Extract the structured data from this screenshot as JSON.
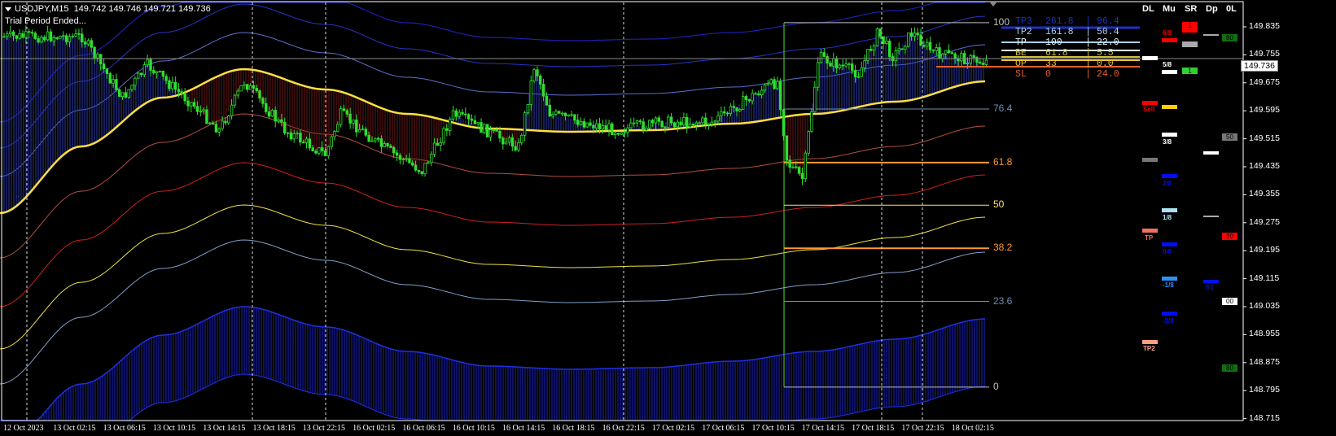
{
  "header": {
    "symbol": "USDJPY,M15",
    "ohlc": "149.742 149.746 149.721 149.736",
    "notice": "Trial Period Ended..."
  },
  "colors": {
    "background": "#000000",
    "candle": "#2fe02f",
    "ma": "#ffe040",
    "bull_fill": "#1a2a9a",
    "bear_fill": "#7a1010"
  },
  "chart_data": {
    "type": "candlestick",
    "x_ticks": [
      "12 Oct 2023",
      "13 Oct 02:15",
      "13 Oct 06:15",
      "13 Oct 10:15",
      "13 Oct 14:15",
      "13 Oct 18:15",
      "13 Oct 22:15",
      "16 Oct 02:15",
      "16 Oct 06:15",
      "16 Oct 10:15",
      "16 Oct 14:15",
      "16 Oct 18:15",
      "16 Oct 22:15",
      "17 Oct 02:15",
      "17 Oct 06:15",
      "17 Oct 10:15",
      "17 Oct 14:15",
      "17 Oct 18:15",
      "17 Oct 22:15",
      "18 Oct 02:15"
    ],
    "y_ticks": [
      "149.835",
      "149.755",
      "149.675",
      "149.595",
      "149.515",
      "149.435",
      "149.355",
      "149.275",
      "149.195",
      "149.115",
      "149.035",
      "148.955",
      "148.875",
      "148.795",
      "148.715"
    ],
    "ylim": [
      148.715,
      149.86
    ],
    "current_price": "149.736",
    "approx_close_path": [
      [
        "12 Oct 22:15",
        149.807
      ],
      [
        "13 Oct 04:30",
        149.807
      ],
      [
        "13 Oct 07:45",
        149.633
      ],
      [
        "13 Oct 09:45",
        149.726
      ],
      [
        "13 Oct 13:30",
        149.609
      ],
      [
        "13 Oct 15:30",
        149.54
      ],
      [
        "13 Oct 17:30",
        149.679
      ],
      [
        "13 Oct 20:45",
        149.54
      ],
      [
        "16 Oct 00:00",
        149.47
      ],
      [
        "16 Oct 01:15",
        149.586
      ],
      [
        "16 Oct 04:30",
        149.493
      ],
      [
        "16 Oct 07:45",
        149.423
      ],
      [
        "16 Oct 10:15",
        149.586
      ],
      [
        "16 Oct 12:45",
        149.54
      ],
      [
        "16 Oct 15:30",
        149.493
      ],
      [
        "16 Oct 16:45",
        149.726
      ],
      [
        "16 Oct 18:00",
        149.586
      ],
      [
        "16 Oct 23:15",
        149.54
      ],
      [
        "17 Oct 03:15",
        149.563
      ],
      [
        "17 Oct 07:00",
        149.563
      ],
      [
        "17 Oct 11:00",
        149.656
      ],
      [
        "17 Oct 12:15",
        149.679
      ],
      [
        "17 Oct 13:00",
        149.447
      ],
      [
        "17 Oct 14:15",
        149.4
      ],
      [
        "17 Oct 15:00",
        149.609
      ],
      [
        "17 Oct 15:30",
        149.749
      ],
      [
        "17 Oct 18:45",
        149.702
      ],
      [
        "17 Oct 20:15",
        149.819
      ],
      [
        "17 Oct 21:30",
        149.749
      ],
      [
        "17 Oct 23:00",
        149.819
      ],
      [
        "18 Oct 00:45",
        149.761
      ],
      [
        "18 Oct 04:30",
        149.736
      ]
    ],
    "fib_levels": [
      {
        "label": "100",
        "price": 149.847,
        "color": "#c0c0c0"
      },
      {
        "label": "76.4",
        "price": 149.6,
        "color": "#6f8fb0"
      },
      {
        "label": "61.8",
        "price": 149.447,
        "color": "#ff9a30"
      },
      {
        "label": "50",
        "price": 149.325,
        "color": "#ffe070"
      },
      {
        "label": "38.2",
        "price": 149.202,
        "color": "#ff9a30"
      },
      {
        "label": "23.6",
        "price": 149.05,
        "color": "#6f8fb0"
      },
      {
        "label": "0",
        "price": 148.805,
        "color": "#c0c0c0"
      }
    ]
  },
  "trade_table": [
    {
      "name": "TP3",
      "level": "261.8",
      "value": "96.4",
      "color": "#2030c0"
    },
    {
      "name": "TP2",
      "level": "161.8",
      "value": "50.4",
      "color": "#a8d0f0"
    },
    {
      "name": "TP",
      "level": "100",
      "value": "22.0",
      "color": "#e0f0f0"
    },
    {
      "name": "BE",
      "level": "61.8",
      "value": "5.5",
      "color": "#d0c040"
    },
    {
      "name": "OP",
      "level": "33",
      "value": "0.0",
      "color": "#f0c030"
    },
    {
      "name": "SL",
      "level": "0",
      "value": "24.0",
      "color": "#e06030"
    }
  ],
  "panel": {
    "headers": [
      "DL",
      "Mu",
      "SR",
      "Dp",
      "0L"
    ],
    "dl": {
      "sell": "Sell",
      "tp": "TP",
      "tp2": "TP2"
    },
    "mu": [
      "6/8",
      "5/8",
      "3/8",
      "2/8",
      "1/8",
      "0/8",
      "-1/8",
      "-2/8"
    ],
    "sr": [
      "1",
      "1"
    ],
    "dp": "S1",
    "ol": [
      "80",
      "50",
      "20",
      "00",
      "80"
    ]
  }
}
